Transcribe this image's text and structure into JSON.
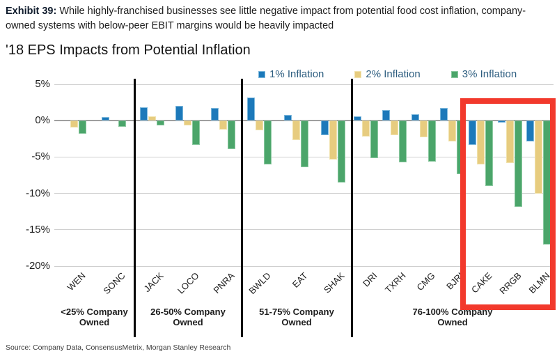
{
  "header": {
    "exhibit_label": "Exhibit 39:",
    "caption": " While highly-franchised businesses see little negative impact from potential food cost inflation, company-owned systems with below-peer EBIT margins would be heavily impacted"
  },
  "source": "Source: Company Data, ConsensusMetrix, Morgan Stanley Research",
  "chart_data": {
    "type": "bar",
    "title": "'18 EPS Impacts from Potential Inflation",
    "xlabel": "",
    "ylabel": "",
    "ylim": [
      -20,
      5
    ],
    "ytick_values": [
      5,
      0,
      -5,
      -10,
      -15,
      -20
    ],
    "ytick_labels": [
      "5%",
      "0%",
      "-5%",
      "-10%",
      "-15%",
      "-20%"
    ],
    "grid": true,
    "legend_position": "top",
    "categories": [
      "WEN",
      "SONC",
      "JACK",
      "LOCO",
      "PNRA",
      "BWLD",
      "EAT",
      "SHAK",
      "DRI",
      "TXRH",
      "CMG",
      "BJRI",
      "CAKE",
      "RRGB",
      "BLMN"
    ],
    "series": [
      {
        "name": "1% Inflation",
        "color": "#1c79ba",
        "values": [
          0,
          0.5,
          1.8,
          2.0,
          1.7,
          3.2,
          0.8,
          -2.0,
          0.6,
          1.5,
          0.9,
          1.7,
          -3.3,
          -0.3,
          -2.9
        ]
      },
      {
        "name": "2% Inflation",
        "color": "#e7cc7f",
        "values": [
          -0.9,
          0,
          0.6,
          -0.7,
          -1.2,
          -1.3,
          -2.7,
          -5.3,
          -2.2,
          -2.0,
          -2.3,
          -2.9,
          -6.0,
          -5.8,
          -10.0
        ]
      },
      {
        "name": "3% Inflation",
        "color": "#4ba56a",
        "values": [
          -1.8,
          -0.8,
          -0.7,
          -3.3,
          -3.9,
          -6.0,
          -6.4,
          -8.5,
          -5.2,
          -5.7,
          -5.6,
          -7.4,
          -9.0,
          -11.9,
          -17.0
        ]
      }
    ],
    "groups": [
      {
        "label": "<25% Company Owned",
        "tickers": [
          "WEN",
          "SONC"
        ]
      },
      {
        "label": "26-50% Company Owned",
        "tickers": [
          "JACK",
          "LOCO",
          "PNRA"
        ]
      },
      {
        "label": "51-75% Company Owned",
        "tickers": [
          "BWLD",
          "EAT",
          "SHAK"
        ]
      },
      {
        "label": "76-100% Company Owned",
        "tickers": [
          "DRI",
          "TXRH",
          "CMG",
          "BJRI",
          "CAKE",
          "RRGB",
          "BLMN"
        ]
      }
    ],
    "highlight_box": {
      "tickers": [
        "CAKE",
        "RRGB",
        "BLMN"
      ],
      "color": "#f2392c"
    }
  }
}
